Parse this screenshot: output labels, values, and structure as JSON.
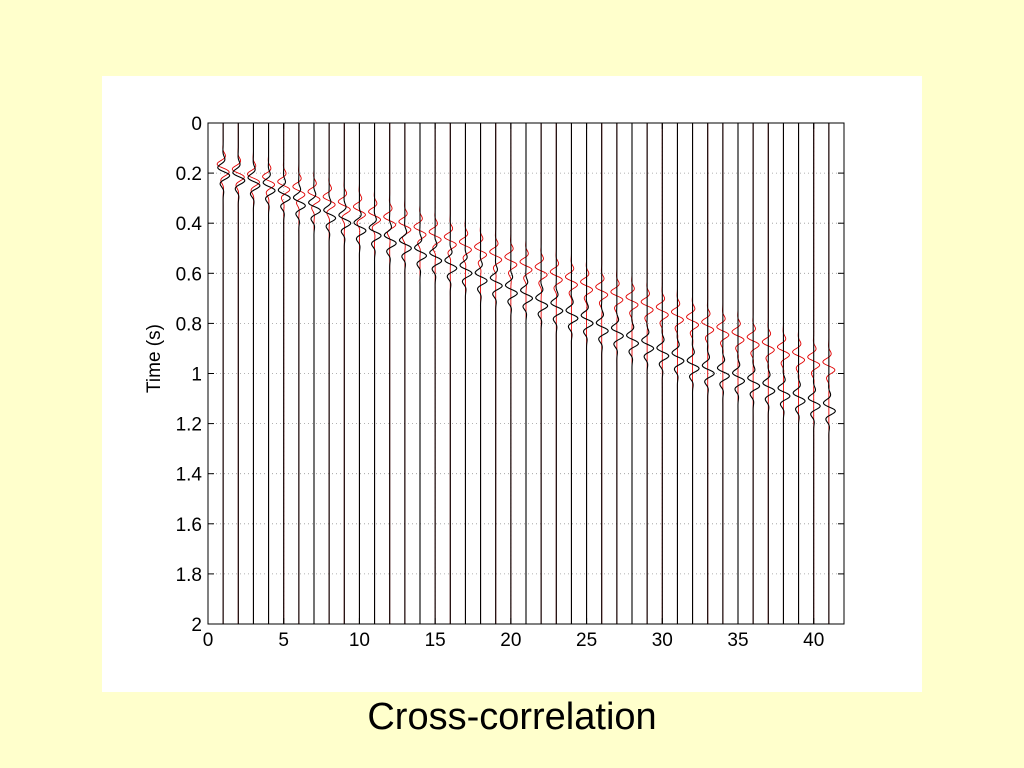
{
  "slide": {
    "caption": "Cross-correlation",
    "background_color": "#FFFFCC"
  },
  "chart_data": {
    "type": "line",
    "title": "",
    "xlabel": "",
    "ylabel": "Time (s)",
    "xlim": [
      0,
      42
    ],
    "ylim": [
      2,
      0
    ],
    "y_axis_reversed": true,
    "grid": true,
    "xticks": [
      0,
      5,
      10,
      15,
      20,
      25,
      30,
      35,
      40
    ],
    "yticks": [
      0,
      0.2,
      0.4,
      0.6,
      0.8,
      1,
      1.2,
      1.4,
      1.6,
      1.8,
      2
    ],
    "trace_offsets": [
      1,
      2,
      3,
      4,
      5,
      6,
      7,
      8,
      9,
      10,
      11,
      12,
      13,
      14,
      15,
      16,
      17,
      18,
      19,
      20,
      21,
      22,
      23,
      24,
      25,
      26,
      27,
      28,
      29,
      30,
      31,
      32,
      33,
      34,
      35,
      36,
      37,
      38,
      39,
      40,
      41
    ],
    "series": [
      {
        "color": "#E00000",
        "arrival_times": [
          0.18,
          0.2,
          0.22,
          0.23,
          0.25,
          0.27,
          0.29,
          0.31,
          0.33,
          0.35,
          0.37,
          0.39,
          0.41,
          0.43,
          0.45,
          0.47,
          0.49,
          0.51,
          0.53,
          0.55,
          0.57,
          0.59,
          0.61,
          0.63,
          0.65,
          0.67,
          0.69,
          0.71,
          0.73,
          0.75,
          0.77,
          0.79,
          0.81,
          0.83,
          0.85,
          0.87,
          0.89,
          0.91,
          0.93,
          0.95,
          0.97
        ]
      },
      {
        "color": "#000000",
        "arrival_times": [
          0.2,
          0.22,
          0.24,
          0.26,
          0.29,
          0.32,
          0.34,
          0.37,
          0.39,
          0.42,
          0.44,
          0.47,
          0.49,
          0.52,
          0.54,
          0.57,
          0.59,
          0.62,
          0.64,
          0.67,
          0.69,
          0.72,
          0.74,
          0.77,
          0.79,
          0.82,
          0.84,
          0.87,
          0.89,
          0.92,
          0.94,
          0.97,
          0.99,
          1.0,
          1.02,
          1.04,
          1.06,
          1.08,
          1.1,
          1.12,
          1.14
        ]
      }
    ]
  }
}
